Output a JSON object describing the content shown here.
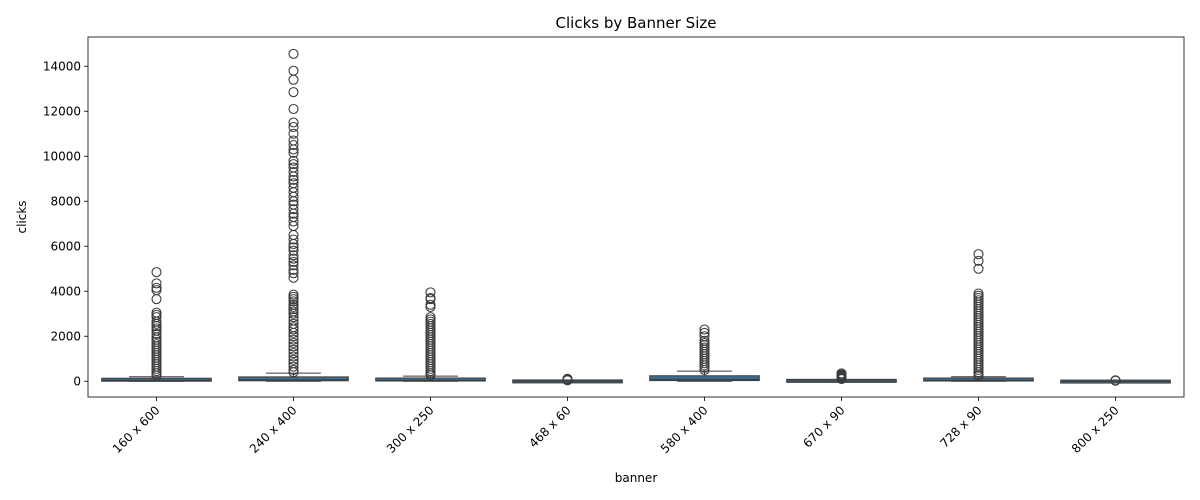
{
  "chart_data": {
    "type": "box",
    "title": "Clicks by Banner Size",
    "xlabel": "banner",
    "ylabel": "clicks",
    "ylim": [
      -700,
      15300
    ],
    "yticks": [
      0,
      2000,
      4000,
      6000,
      8000,
      10000,
      12000,
      14000
    ],
    "grid": false,
    "categories": [
      "160 x 600",
      "240 x 400",
      "300 x 250",
      "468 x 60",
      "580 x 400",
      "670 x 90",
      "728 x 90",
      "800 x 250"
    ],
    "boxes": [
      {
        "q1": 10,
        "median": 40,
        "q3": 90,
        "whisker_low": 0,
        "whisker_high": 200,
        "outliers": [
          4850,
          4350,
          4150,
          4050,
          3650,
          3050,
          2950,
          2850,
          2650,
          2550,
          2450,
          2350,
          2250,
          2100,
          1950,
          1850,
          1750,
          1650,
          1550,
          1450,
          1350,
          1250,
          1150,
          1050,
          950,
          850,
          750,
          650,
          550,
          450,
          350,
          250
        ]
      },
      {
        "q1": 20,
        "median": 60,
        "q3": 150,
        "whisker_low": 0,
        "whisker_high": 360,
        "outliers": [
          14550,
          13800,
          13400,
          12850,
          12100,
          11500,
          11300,
          11000,
          10700,
          10500,
          10300,
          10150,
          9800,
          9650,
          9500,
          9300,
          9100,
          8950,
          8800,
          8600,
          8400,
          8200,
          8000,
          7850,
          7650,
          7450,
          7300,
          7100,
          6900,
          6500,
          6300,
          6100,
          5950,
          5800,
          5600,
          5450,
          5300,
          5150,
          4950,
          4800,
          4600,
          3850,
          3750,
          3650,
          3550,
          3400,
          3300,
          3200,
          3100,
          3000,
          2850,
          2700,
          2550,
          2400,
          2300,
          2150,
          2000,
          1850,
          1700,
          1550,
          1400,
          1250,
          1100,
          950,
          800,
          650,
          500,
          400
        ]
      },
      {
        "q1": 10,
        "median": 40,
        "q3": 100,
        "whisker_low": 0,
        "whisker_high": 230,
        "outliers": [
          3950,
          3700,
          3650,
          3400,
          3300,
          2850,
          2750,
          2650,
          2550,
          2450,
          2350,
          2250,
          2150,
          2050,
          1950,
          1850,
          1750,
          1650,
          1550,
          1450,
          1350,
          1250,
          1150,
          1050,
          950,
          850,
          750,
          650,
          550,
          450,
          350,
          270
        ]
      },
      {
        "q1": 0,
        "median": 5,
        "q3": 15,
        "whisker_low": 0,
        "whisker_high": 30,
        "outliers": [
          110,
          80,
          60,
          40
        ]
      },
      {
        "q1": 30,
        "median": 90,
        "q3": 200,
        "whisker_low": 0,
        "whisker_high": 450,
        "outliers": [
          2300,
          2150,
          2000,
          1800,
          1700,
          1600,
          1500,
          1400,
          1300,
          1200,
          1100,
          1000,
          900,
          800,
          700,
          600,
          500
        ]
      },
      {
        "q1": 0,
        "median": 10,
        "q3": 40,
        "whisker_low": 0,
        "whisker_high": 80,
        "outliers": [
          350,
          300,
          260,
          220,
          180,
          150,
          120,
          95
        ]
      },
      {
        "q1": 10,
        "median": 40,
        "q3": 100,
        "whisker_low": 0,
        "whisker_high": 200,
        "outliers": [
          5650,
          5350,
          5000,
          3900,
          3800,
          3700,
          3600,
          3500,
          3400,
          3300,
          3200,
          3100,
          3000,
          2900,
          2800,
          2700,
          2600,
          2500,
          2400,
          2300,
          2200,
          2100,
          2000,
          1900,
          1800,
          1700,
          1600,
          1500,
          1400,
          1300,
          1200,
          1100,
          1000,
          900,
          800,
          700,
          600,
          500,
          400,
          300,
          240
        ]
      },
      {
        "q1": 0,
        "median": 2,
        "q3": 8,
        "whisker_low": 0,
        "whisker_high": 15,
        "outliers": [
          40,
          25
        ]
      }
    ]
  }
}
